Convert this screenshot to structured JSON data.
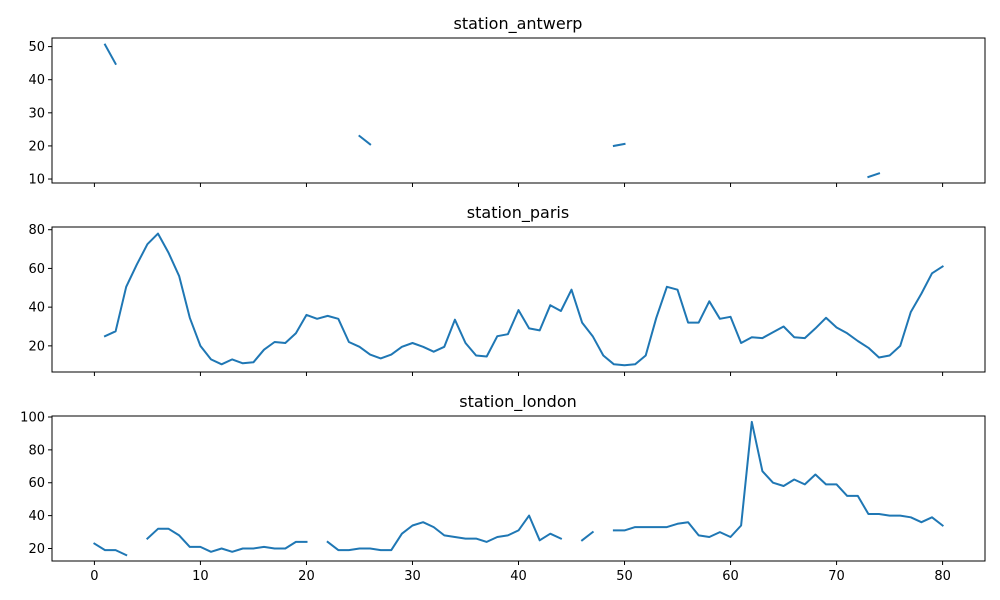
{
  "chart_data": [
    {
      "type": "line",
      "title": "station_antwerp",
      "xlim": [
        -4,
        84
      ],
      "ylim": [
        8.8,
        52.6
      ],
      "yticks": [
        10,
        20,
        30,
        40,
        50
      ],
      "xticks": [
        0,
        10,
        20,
        30,
        40,
        50,
        60,
        70,
        80
      ],
      "show_xticklabels": false,
      "grid": false,
      "color": "#1f77b4",
      "x": [
        0,
        1,
        2,
        3,
        4,
        5,
        6,
        7,
        8,
        9,
        10,
        11,
        12,
        13,
        14,
        15,
        16,
        17,
        18,
        19,
        20,
        21,
        22,
        23,
        24,
        25,
        26,
        27,
        28,
        29,
        30,
        31,
        32,
        33,
        34,
        35,
        36,
        37,
        38,
        39,
        40,
        41,
        42,
        43,
        44,
        45,
        46,
        47,
        48,
        49,
        50,
        51,
        52,
        53,
        54,
        55,
        56,
        57,
        58,
        59,
        60,
        61,
        62,
        63,
        64,
        65,
        66,
        67,
        68,
        69,
        70,
        71,
        72,
        73,
        74,
        75,
        76,
        77,
        78,
        79,
        80
      ],
      "y": [
        null,
        50.6,
        44.8,
        null,
        null,
        null,
        null,
        null,
        null,
        null,
        null,
        null,
        null,
        null,
        null,
        null,
        null,
        null,
        null,
        null,
        null,
        null,
        null,
        null,
        null,
        23.0,
        20.5,
        null,
        null,
        null,
        null,
        null,
        null,
        null,
        null,
        null,
        null,
        null,
        null,
        null,
        null,
        null,
        null,
        null,
        null,
        null,
        null,
        null,
        null,
        20.0,
        20.6,
        null,
        null,
        null,
        null,
        null,
        null,
        null,
        null,
        null,
        null,
        null,
        null,
        null,
        null,
        null,
        null,
        null,
        null,
        null,
        null,
        null,
        null,
        10.6,
        11.7,
        null,
        null,
        null,
        null,
        null,
        null
      ]
    },
    {
      "type": "line",
      "title": "station_paris",
      "xlim": [
        -4,
        84
      ],
      "ylim": [
        6.5,
        81.4
      ],
      "yticks": [
        20,
        40,
        60,
        80
      ],
      "xticks": [
        0,
        10,
        20,
        30,
        40,
        50,
        60,
        70,
        80
      ],
      "show_xticklabels": false,
      "grid": false,
      "color": "#1f77b4",
      "x": [
        0,
        1,
        2,
        3,
        4,
        5,
        6,
        7,
        8,
        9,
        10,
        11,
        12,
        13,
        14,
        15,
        16,
        17,
        18,
        19,
        20,
        21,
        22,
        23,
        24,
        25,
        26,
        27,
        28,
        29,
        30,
        31,
        32,
        33,
        34,
        35,
        36,
        37,
        38,
        39,
        40,
        41,
        42,
        43,
        44,
        45,
        46,
        47,
        48,
        49,
        50,
        51,
        52,
        53,
        54,
        55,
        56,
        57,
        58,
        59,
        60,
        61,
        62,
        63,
        64,
        65,
        66,
        67,
        68,
        69,
        70,
        71,
        72,
        73,
        74,
        75,
        76,
        77,
        78,
        79,
        80
      ],
      "y": [
        null,
        25,
        27.5,
        50.5,
        62,
        72.5,
        78,
        68,
        56,
        34.5,
        20,
        13,
        10.5,
        13,
        11,
        11.5,
        18,
        22,
        21.5,
        26.5,
        36,
        34,
        35.5,
        34,
        22,
        19.5,
        15.5,
        13.5,
        15.5,
        19.5,
        21.5,
        19.5,
        17,
        19.5,
        33.5,
        21.5,
        15,
        14.5,
        25,
        26,
        38.5,
        29,
        28,
        41,
        38,
        49,
        32,
        25,
        15,
        10.5,
        10,
        10.5,
        15,
        34.5,
        50.5,
        49,
        32,
        32,
        43,
        34,
        35,
        21.5,
        24.5,
        24,
        27,
        30,
        24.5,
        24,
        29,
        34.5,
        29.5,
        26.5,
        22.5,
        19,
        14,
        15,
        20,
        37.5,
        47,
        57.5,
        61
      ]
    },
    {
      "type": "line",
      "title": "station_london",
      "xlim": [
        -4,
        84
      ],
      "ylim": [
        12.4,
        100.6
      ],
      "yticks": [
        20,
        40,
        60,
        80,
        100
      ],
      "xticks": [
        0,
        10,
        20,
        30,
        40,
        50,
        60,
        70,
        80
      ],
      "show_xticklabels": true,
      "grid": false,
      "color": "#1f77b4",
      "x": [
        0,
        1,
        2,
        3,
        4,
        5,
        6,
        7,
        8,
        9,
        10,
        11,
        12,
        13,
        14,
        15,
        16,
        17,
        18,
        19,
        20,
        21,
        22,
        23,
        24,
        25,
        26,
        27,
        28,
        29,
        30,
        31,
        32,
        33,
        34,
        35,
        36,
        37,
        38,
        39,
        40,
        41,
        42,
        43,
        44,
        45,
        46,
        47,
        48,
        49,
        50,
        51,
        52,
        53,
        54,
        55,
        56,
        57,
        58,
        59,
        60,
        61,
        62,
        63,
        64,
        65,
        66,
        67,
        68,
        69,
        70,
        71,
        72,
        73,
        74,
        75,
        76,
        77,
        78,
        79,
        80
      ],
      "y": [
        23,
        19,
        19,
        16,
        null,
        26,
        32,
        32,
        28,
        21,
        21,
        18,
        20,
        18,
        20,
        20,
        21,
        20,
        20,
        24,
        24,
        null,
        24,
        19,
        19,
        20,
        20,
        19,
        19,
        29,
        34,
        36,
        33,
        28,
        27,
        26,
        26,
        24,
        27,
        28,
        31,
        40,
        25,
        29,
        26,
        null,
        25,
        30,
        null,
        31,
        31,
        33,
        33,
        33,
        33,
        35,
        36,
        28,
        27,
        30,
        27,
        34,
        97,
        67,
        60,
        58,
        62,
        59,
        65,
        59,
        59,
        52,
        52,
        41,
        41,
        40,
        40,
        39,
        36,
        39,
        34
      ]
    }
  ]
}
